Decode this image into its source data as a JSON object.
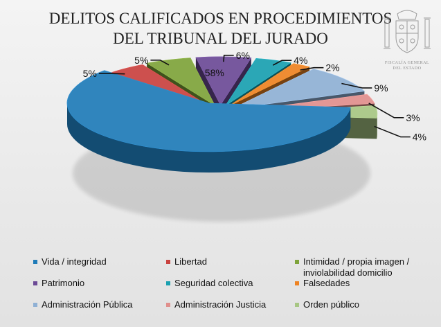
{
  "chart_data": {
    "type": "pie",
    "title_lines": [
      "DELITOS CALIFICADOS EN PROCEDIMIENTOS",
      "DEL TRIBUNAL DEL JURADO"
    ],
    "categories": [
      "Vida / integridad",
      "Libertad",
      "Intimidad / propia imagen / inviolabilidad domicilio",
      "Patrimonio",
      "Seguridad colectiva",
      "Falsedades",
      "Administración Pública",
      "Administración Justicia",
      "Orden público"
    ],
    "values": [
      58,
      5,
      5,
      6,
      4,
      2,
      9,
      3,
      4
    ],
    "data_labels": [
      "58%",
      "5%",
      "5%",
      "6%",
      "4%",
      "2%",
      "9%",
      "3%",
      "4%"
    ],
    "colors": [
      "#1f7bb8",
      "#c9423f",
      "#7ea33a",
      "#6c4a96",
      "#1aa0b0",
      "#ee8322",
      "#8fb0d4",
      "#e08f8c",
      "#a7c683"
    ],
    "legend_placement": "bottom",
    "three_d": true,
    "exploded": true
  },
  "emblem": {
    "icon": "coat-of-arms-icon",
    "caption_lines": [
      "FISCALÍA GENERAL",
      "DEL ESTADO"
    ]
  }
}
